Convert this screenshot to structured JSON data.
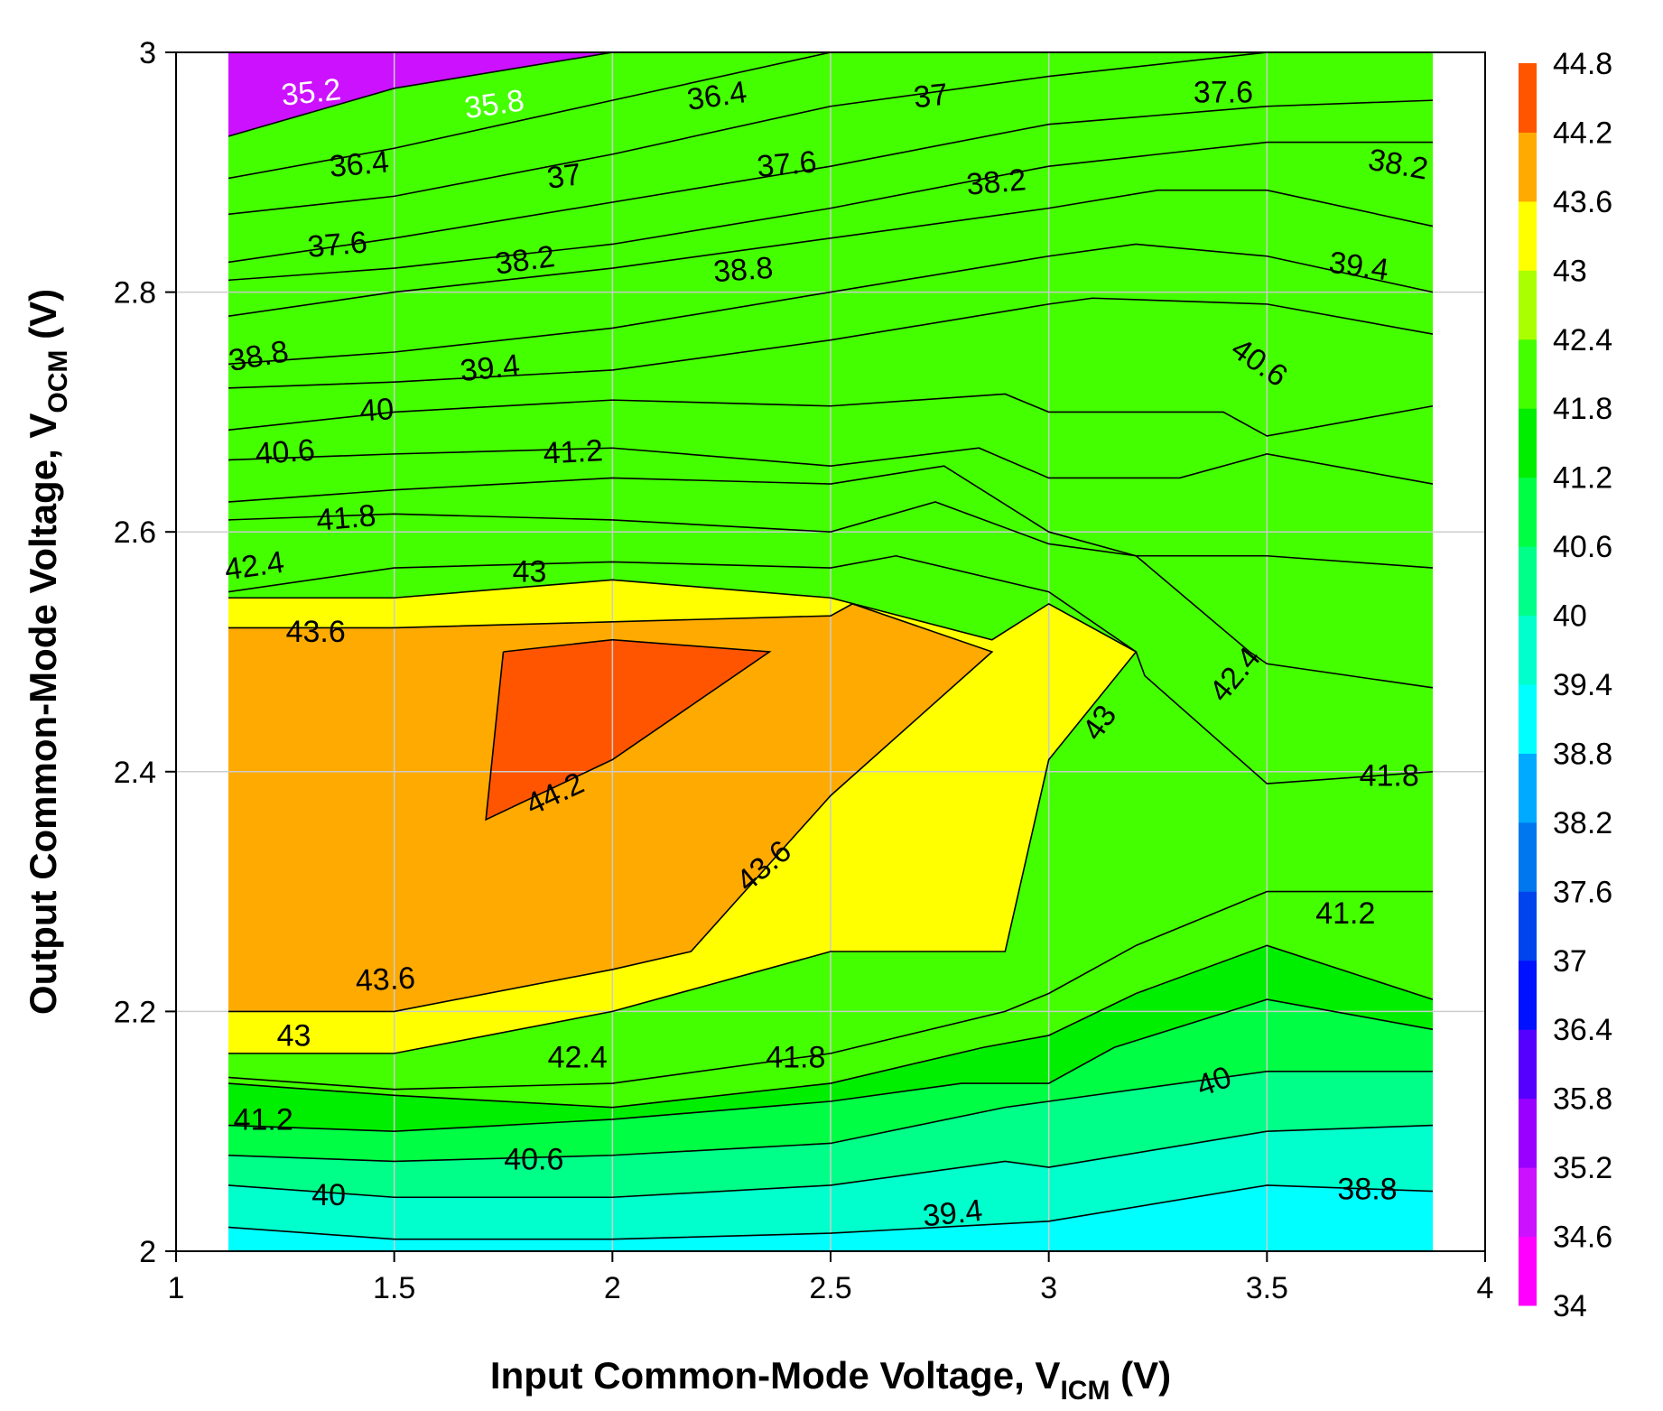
{
  "chart_data": {
    "type": "contour",
    "title": "",
    "xlabel": {
      "main": "Input Common-Mode Voltage, V",
      "sub": "ICM",
      "suffix": " (V)"
    },
    "ylabel": {
      "main": "Output Common-Mode Voltage, V",
      "sub": "OCM",
      "suffix": " (V)"
    },
    "xlim": [
      1,
      4
    ],
    "ylim": [
      2,
      3
    ],
    "xticks": [
      1,
      1.5,
      2,
      2.5,
      3,
      3.5,
      4
    ],
    "xtick_labels": [
      "1",
      "1.5",
      "2",
      "2.5",
      "3",
      "3.5",
      "4"
    ],
    "yticks": [
      2,
      2.2,
      2.4,
      2.6,
      2.8,
      3
    ],
    "ytick_labels": [
      "2",
      "2.2",
      "2.4",
      "2.6",
      "2.8",
      "3"
    ],
    "grid": true,
    "data_x_range": [
      1.12,
      3.88
    ],
    "levels": [
      34,
      34.6,
      35.2,
      35.8,
      36.4,
      37,
      37.6,
      38.2,
      38.8,
      39.4,
      40,
      40.6,
      41.2,
      41.8,
      42.4,
      43,
      43.6,
      44.2,
      44.8
    ],
    "level_labels": [
      "34",
      "34.6",
      "35.2",
      "35.8",
      "36.4",
      "37",
      "37.6",
      "38.2",
      "38.8",
      "39.4",
      "40",
      "40.6",
      "41.2",
      "41.8",
      "42.4",
      "43",
      "43.6",
      "44.2",
      "44.8"
    ],
    "colors": [
      "#ff00ff",
      "#cc11ff",
      "#9900ff",
      "#5500ff",
      "#0011ff",
      "#0044ee",
      "#0077ee",
      "#00aaff",
      "#00ffff",
      "#00ffcc",
      "#00ff88",
      "#00ff44",
      "#00ee00",
      "#44ff00",
      "#aaff00",
      "#ffff00",
      "#ffaa00",
      "#ff5500",
      "#ff0000"
    ],
    "contours": [
      {
        "level": 35.2,
        "points": [
          [
            1.12,
            2.93
          ],
          [
            1.5,
            2.97
          ],
          [
            2.0,
            3.0
          ]
        ]
      },
      {
        "level": 35.8,
        "points": [
          [
            1.12,
            2.895
          ],
          [
            1.5,
            2.92
          ],
          [
            2.0,
            2.96
          ],
          [
            2.5,
            3.0
          ]
        ]
      },
      {
        "level": 36.4,
        "points": [
          [
            1.12,
            2.865
          ],
          [
            1.5,
            2.88
          ],
          [
            2.0,
            2.915
          ],
          [
            2.5,
            2.955
          ],
          [
            3.0,
            2.98
          ],
          [
            3.5,
            3.0
          ]
        ]
      },
      {
        "level": 37,
        "points": [
          [
            1.12,
            2.825
          ],
          [
            1.5,
            2.845
          ],
          [
            2.0,
            2.875
          ],
          [
            2.5,
            2.905
          ],
          [
            3.0,
            2.94
          ],
          [
            3.5,
            2.955
          ],
          [
            3.88,
            2.96
          ]
        ]
      },
      {
        "level": 37.6,
        "points": [
          [
            1.12,
            2.81
          ],
          [
            1.5,
            2.82
          ],
          [
            2.0,
            2.84
          ],
          [
            2.5,
            2.87
          ],
          [
            3.0,
            2.905
          ],
          [
            3.5,
            2.925
          ],
          [
            3.88,
            2.925
          ]
        ]
      },
      {
        "level": 38.2,
        "points": [
          [
            1.12,
            2.78
          ],
          [
            1.5,
            2.8
          ],
          [
            2.0,
            2.82
          ],
          [
            2.5,
            2.845
          ],
          [
            3.0,
            2.87
          ],
          [
            3.25,
            2.885
          ],
          [
            3.5,
            2.885
          ],
          [
            3.88,
            2.855
          ]
        ]
      },
      {
        "level": 38.8,
        "points": [
          [
            1.12,
            2.74
          ],
          [
            1.5,
            2.75
          ],
          [
            2.0,
            2.77
          ],
          [
            2.5,
            2.8
          ],
          [
            3.0,
            2.83
          ],
          [
            3.2,
            2.84
          ],
          [
            3.5,
            2.83
          ],
          [
            3.88,
            2.8
          ]
        ]
      },
      {
        "level": 39.4,
        "points": [
          [
            1.12,
            2.72
          ],
          [
            1.5,
            2.725
          ],
          [
            2.0,
            2.735
          ],
          [
            2.5,
            2.76
          ],
          [
            3.0,
            2.79
          ],
          [
            3.1,
            2.795
          ],
          [
            3.5,
            2.79
          ],
          [
            3.88,
            2.765
          ]
        ]
      },
      {
        "level": 40,
        "points": [
          [
            1.12,
            2.685
          ],
          [
            1.5,
            2.7
          ],
          [
            2.0,
            2.71
          ],
          [
            2.5,
            2.705
          ],
          [
            2.9,
            2.715
          ],
          [
            3.0,
            2.7
          ],
          [
            3.4,
            2.7
          ],
          [
            3.5,
            2.68
          ],
          [
            3.88,
            2.705
          ]
        ]
      },
      {
        "level": 40.6,
        "points": [
          [
            1.12,
            2.66
          ],
          [
            1.5,
            2.665
          ],
          [
            2.0,
            2.67
          ],
          [
            2.5,
            2.655
          ],
          [
            2.84,
            2.67
          ],
          [
            3.0,
            2.645
          ],
          [
            3.3,
            2.645
          ],
          [
            3.5,
            2.665
          ],
          [
            3.88,
            2.64
          ]
        ]
      },
      {
        "level": 41.2,
        "points": [
          [
            1.12,
            2.625
          ],
          [
            1.5,
            2.635
          ],
          [
            2.0,
            2.645
          ],
          [
            2.5,
            2.64
          ],
          [
            2.76,
            2.655
          ],
          [
            3.0,
            2.6
          ],
          [
            3.2,
            2.58
          ],
          [
            3.5,
            2.58
          ],
          [
            3.88,
            2.57
          ]
        ]
      },
      {
        "level": 41.8,
        "points": [
          [
            1.12,
            2.61
          ],
          [
            1.5,
            2.615
          ],
          [
            2.0,
            2.61
          ],
          [
            2.5,
            2.6
          ],
          [
            2.74,
            2.625
          ],
          [
            3.0,
            2.59
          ],
          [
            3.2,
            2.58
          ],
          [
            3.46,
            2.5
          ],
          [
            3.5,
            2.49
          ],
          [
            3.88,
            2.47
          ]
        ]
      },
      {
        "level": 42.4,
        "points": [
          [
            1.12,
            2.55
          ],
          [
            1.5,
            2.57
          ],
          [
            2.0,
            2.575
          ],
          [
            2.5,
            2.57
          ],
          [
            2.65,
            2.58
          ],
          [
            3.0,
            2.55
          ],
          [
            3.2,
            2.5
          ],
          [
            3.22,
            2.48
          ],
          [
            3.5,
            2.39
          ],
          [
            3.88,
            2.4
          ]
        ]
      },
      {
        "level": 43,
        "points": [
          [
            1.12,
            2.545
          ],
          [
            1.5,
            2.545
          ],
          [
            2.0,
            2.56
          ],
          [
            2.5,
            2.545
          ],
          [
            2.87,
            2.51
          ],
          [
            3.0,
            2.54
          ],
          [
            3.2,
            2.5
          ],
          [
            3.0,
            2.41
          ],
          [
            2.9,
            2.25
          ],
          [
            2.5,
            2.25
          ],
          [
            2.0,
            2.2
          ],
          [
            1.5,
            2.165
          ],
          [
            1.12,
            2.165
          ]
        ]
      },
      {
        "level": 43.6,
        "points": [
          [
            1.12,
            2.52
          ],
          [
            1.5,
            2.52
          ],
          [
            2.0,
            2.525
          ],
          [
            2.5,
            2.53
          ],
          [
            2.55,
            2.54
          ],
          [
            2.87,
            2.5
          ],
          [
            2.5,
            2.38
          ],
          [
            2.18,
            2.25
          ],
          [
            2.0,
            2.235
          ],
          [
            1.5,
            2.2
          ],
          [
            1.12,
            2.2
          ]
        ]
      },
      {
        "level": 44.2,
        "points": [
          [
            1.75,
            2.5
          ],
          [
            2.0,
            2.51
          ],
          [
            2.36,
            2.5
          ],
          [
            2.0,
            2.41
          ],
          [
            1.71,
            2.36
          ],
          [
            1.75,
            2.5
          ]
        ]
      },
      {
        "level": 42.4,
        "points": [
          [
            1.12,
            2.145
          ],
          [
            1.5,
            2.135
          ],
          [
            2.0,
            2.14
          ],
          [
            2.5,
            2.165
          ],
          [
            2.9,
            2.2
          ],
          [
            3.0,
            2.215
          ],
          [
            3.2,
            2.255
          ],
          [
            3.5,
            2.3
          ],
          [
            3.88,
            2.3
          ]
        ]
      },
      {
        "level": 41.8,
        "points": [
          [
            1.12,
            2.14
          ],
          [
            1.5,
            2.13
          ],
          [
            2.0,
            2.12
          ],
          [
            2.5,
            2.14
          ],
          [
            2.85,
            2.17
          ],
          [
            3.0,
            2.18
          ],
          [
            3.2,
            2.215
          ],
          [
            3.5,
            2.255
          ],
          [
            3.88,
            2.21
          ]
        ]
      },
      {
        "level": 41.2,
        "points": [
          [
            1.12,
            2.105
          ],
          [
            1.5,
            2.1
          ],
          [
            2.0,
            2.11
          ],
          [
            2.5,
            2.125
          ],
          [
            2.8,
            2.14
          ],
          [
            3.0,
            2.14
          ],
          [
            3.15,
            2.17
          ],
          [
            3.5,
            2.21
          ],
          [
            3.88,
            2.185
          ]
        ]
      },
      {
        "level": 40.6,
        "points": [
          [
            1.12,
            2.08
          ],
          [
            1.5,
            2.075
          ],
          [
            2.0,
            2.08
          ],
          [
            2.5,
            2.09
          ],
          [
            2.9,
            2.12
          ],
          [
            3.0,
            2.125
          ],
          [
            3.5,
            2.15
          ],
          [
            3.88,
            2.15
          ]
        ]
      },
      {
        "level": 40,
        "points": [
          [
            1.12,
            2.055
          ],
          [
            1.5,
            2.045
          ],
          [
            2.0,
            2.045
          ],
          [
            2.5,
            2.055
          ],
          [
            2.9,
            2.075
          ],
          [
            3.0,
            2.07
          ],
          [
            3.5,
            2.1
          ],
          [
            3.88,
            2.105
          ]
        ]
      },
      {
        "level": 39.4,
        "points": [
          [
            1.12,
            2.02
          ],
          [
            1.5,
            2.01
          ],
          [
            2.0,
            2.01
          ],
          [
            2.5,
            2.015
          ],
          [
            3.0,
            2.025
          ],
          [
            3.5,
            2.055
          ],
          [
            3.88,
            2.05
          ]
        ]
      },
      {
        "level": 38.8,
        "points": [
          [
            3.0,
            2.0
          ],
          [
            3.5,
            2.0
          ],
          [
            3.88,
            2.0
          ]
        ]
      }
    ],
    "contour_labels": [
      {
        "text": "35.2",
        "x": 1.31,
        "y": 2.965,
        "angle": -6,
        "color": "#ffffff"
      },
      {
        "text": "35.8",
        "x": 1.73,
        "y": 2.955,
        "angle": -8,
        "color": "#ffffff"
      },
      {
        "text": "36.4",
        "x": 1.42,
        "y": 2.905,
        "angle": -5,
        "color": "#000000"
      },
      {
        "text": "36.4",
        "x": 2.24,
        "y": 2.962,
        "angle": -8,
        "color": "#000000"
      },
      {
        "text": "37",
        "x": 1.89,
        "y": 2.895,
        "angle": -8,
        "color": "#000000"
      },
      {
        "text": "37",
        "x": 2.73,
        "y": 2.962,
        "angle": -6,
        "color": "#000000"
      },
      {
        "text": "37.6",
        "x": 1.37,
        "y": 2.838,
        "angle": -5,
        "color": "#000000"
      },
      {
        "text": "37.6",
        "x": 2.4,
        "y": 2.905,
        "angle": -5,
        "color": "#000000"
      },
      {
        "text": "37.6",
        "x": 3.4,
        "y": 2.965,
        "angle": 0,
        "color": "#000000"
      },
      {
        "text": "38.2",
        "x": 1.8,
        "y": 2.825,
        "angle": -8,
        "color": "#000000"
      },
      {
        "text": "38.2",
        "x": 2.88,
        "y": 2.89,
        "angle": -5,
        "color": "#000000"
      },
      {
        "text": "38.2",
        "x": 3.8,
        "y": 2.905,
        "angle": 10,
        "color": "#000000"
      },
      {
        "text": "38.8",
        "x": 1.19,
        "y": 2.745,
        "angle": -10,
        "color": "#000000"
      },
      {
        "text": "38.8",
        "x": 2.3,
        "y": 2.817,
        "angle": -4,
        "color": "#000000"
      },
      {
        "text": "39.4",
        "x": 1.72,
        "y": 2.735,
        "angle": -6,
        "color": "#000000"
      },
      {
        "text": "39.4",
        "x": 3.71,
        "y": 2.82,
        "angle": 8,
        "color": "#000000"
      },
      {
        "text": "40",
        "x": 1.46,
        "y": 2.7,
        "angle": -4,
        "color": "#000000"
      },
      {
        "text": "40.6",
        "x": 1.25,
        "y": 2.665,
        "angle": -4,
        "color": "#000000"
      },
      {
        "text": "40.6",
        "x": 3.48,
        "y": 2.74,
        "angle": 35,
        "color": "#000000"
      },
      {
        "text": "41.2",
        "x": 1.91,
        "y": 2.665,
        "angle": -3,
        "color": "#000000"
      },
      {
        "text": "41.8",
        "x": 1.39,
        "y": 2.61,
        "angle": -5,
        "color": "#000000"
      },
      {
        "text": "41.8",
        "x": 3.78,
        "y": 2.395,
        "angle": 0,
        "color": "#000000"
      },
      {
        "text": "41.8",
        "x": 2.42,
        "y": 2.16,
        "angle": 0,
        "color": "#000000"
      },
      {
        "text": "41.2",
        "x": 3.68,
        "y": 2.28,
        "angle": 0,
        "color": "#000000"
      },
      {
        "text": "41.2",
        "x": 1.2,
        "y": 2.108,
        "angle": 0,
        "color": "#000000"
      },
      {
        "text": "42.4",
        "x": 1.18,
        "y": 2.57,
        "angle": -8,
        "color": "#000000"
      },
      {
        "text": "42.4",
        "x": 3.43,
        "y": 2.48,
        "angle": -50,
        "color": "#000000"
      },
      {
        "text": "42.4",
        "x": 1.92,
        "y": 2.16,
        "angle": 0,
        "color": "#000000"
      },
      {
        "text": "43",
        "x": 1.81,
        "y": 2.565,
        "angle": 0,
        "color": "#000000"
      },
      {
        "text": "43",
        "x": 3.12,
        "y": 2.44,
        "angle": -55,
        "color": "#000000"
      },
      {
        "text": "43",
        "x": 1.27,
        "y": 2.178,
        "angle": 0,
        "color": "#000000"
      },
      {
        "text": "43.6",
        "x": 1.32,
        "y": 2.515,
        "angle": 0,
        "color": "#000000"
      },
      {
        "text": "43.6",
        "x": 2.35,
        "y": 2.32,
        "angle": -40,
        "color": "#000000"
      },
      {
        "text": "43.6",
        "x": 1.48,
        "y": 2.225,
        "angle": -3,
        "color": "#000000"
      },
      {
        "text": "44.2",
        "x": 1.87,
        "y": 2.38,
        "angle": -25,
        "color": "#000000"
      },
      {
        "text": "40",
        "x": 3.38,
        "y": 2.14,
        "angle": -20,
        "color": "#000000"
      },
      {
        "text": "40.6",
        "x": 1.82,
        "y": 2.075,
        "angle": 0,
        "color": "#000000"
      },
      {
        "text": "40",
        "x": 1.35,
        "y": 2.045,
        "angle": 0,
        "color": "#000000"
      },
      {
        "text": "39.4",
        "x": 2.78,
        "y": 2.03,
        "angle": -6,
        "color": "#000000"
      },
      {
        "text": "38.8",
        "x": 3.73,
        "y": 2.05,
        "angle": 0,
        "color": "#000000"
      }
    ]
  }
}
